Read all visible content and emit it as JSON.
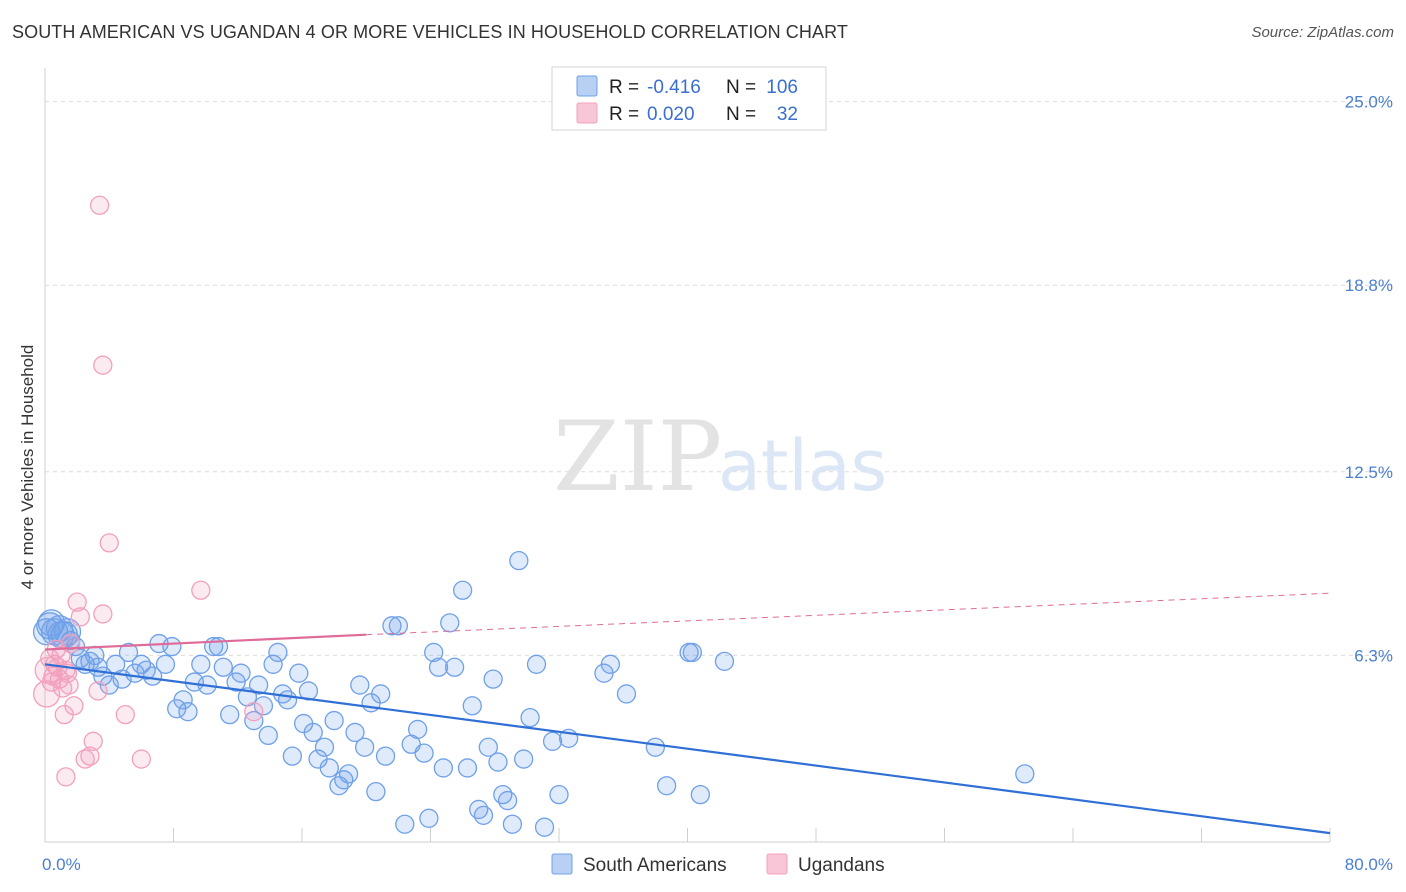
{
  "title": "SOUTH AMERICAN VS UGANDAN 4 OR MORE VEHICLES IN HOUSEHOLD CORRELATION CHART",
  "source": "Source: ZipAtlas.com",
  "watermark": {
    "zip": "ZIP",
    "atlas": "atlas"
  },
  "chart_data": {
    "type": "scatter",
    "ylabel": "4 or more Vehicles in Household",
    "xlim": [
      0,
      80
    ],
    "ylim": [
      0,
      26
    ],
    "x_tick_labels": [
      {
        "value": 0,
        "label": "0.0%"
      },
      {
        "value": 80,
        "label": "80.0%"
      }
    ],
    "y_ticks": [
      {
        "value": 6.3,
        "label": "6.3%"
      },
      {
        "value": 12.5,
        "label": "12.5%"
      },
      {
        "value": 18.8,
        "label": "18.8%"
      },
      {
        "value": 25.0,
        "label": "25.0%"
      }
    ],
    "grid": "horizontal dashed",
    "legend_position": "top-center",
    "series": [
      {
        "name": "South Americans",
        "color": "#6fa0e8",
        "line_color": "#2f6fd6",
        "R": "-0.416",
        "N": "106",
        "trend": {
          "x0": 0,
          "y0": 6.0,
          "x1": 80,
          "y1": 0.3
        },
        "points": [
          [
            0.3,
            7.3
          ],
          [
            0.6,
            7.1
          ],
          [
            0.9,
            7.2
          ],
          [
            1.2,
            7.0
          ],
          [
            1.6,
            6.8
          ],
          [
            1.9,
            6.6
          ],
          [
            2.2,
            6.2
          ],
          [
            2.5,
            6.0
          ],
          [
            2.8,
            6.1
          ],
          [
            3.1,
            6.3
          ],
          [
            3.3,
            5.9
          ],
          [
            3.6,
            5.6
          ],
          [
            4.0,
            5.3
          ],
          [
            4.4,
            6.0
          ],
          [
            4.8,
            5.5
          ],
          [
            5.2,
            6.4
          ],
          [
            5.6,
            5.7
          ],
          [
            6.0,
            6.0
          ],
          [
            6.3,
            5.8
          ],
          [
            6.7,
            5.6
          ],
          [
            7.1,
            6.7
          ],
          [
            7.5,
            6.0
          ],
          [
            7.9,
            6.6
          ],
          [
            8.2,
            4.5
          ],
          [
            8.6,
            4.8
          ],
          [
            8.9,
            4.4
          ],
          [
            9.3,
            5.4
          ],
          [
            9.7,
            6.0
          ],
          [
            10.1,
            5.3
          ],
          [
            10.5,
            6.6
          ],
          [
            10.8,
            6.6
          ],
          [
            11.1,
            5.9
          ],
          [
            11.5,
            4.3
          ],
          [
            11.9,
            5.4
          ],
          [
            12.2,
            5.7
          ],
          [
            12.6,
            4.9
          ],
          [
            13.0,
            4.1
          ],
          [
            13.3,
            5.3
          ],
          [
            13.6,
            4.6
          ],
          [
            13.9,
            3.6
          ],
          [
            14.2,
            6.0
          ],
          [
            14.5,
            6.4
          ],
          [
            14.8,
            5.0
          ],
          [
            15.1,
            4.8
          ],
          [
            15.4,
            2.9
          ],
          [
            15.8,
            5.7
          ],
          [
            16.1,
            4.0
          ],
          [
            16.4,
            5.1
          ],
          [
            16.7,
            3.7
          ],
          [
            17.0,
            2.8
          ],
          [
            17.4,
            3.2
          ],
          [
            17.7,
            2.5
          ],
          [
            18.0,
            4.1
          ],
          [
            18.3,
            1.9
          ],
          [
            18.6,
            2.1
          ],
          [
            18.9,
            2.3
          ],
          [
            19.3,
            3.7
          ],
          [
            19.6,
            5.3
          ],
          [
            19.9,
            3.2
          ],
          [
            20.3,
            4.7
          ],
          [
            20.6,
            1.7
          ],
          [
            20.9,
            5.0
          ],
          [
            21.2,
            2.9
          ],
          [
            21.6,
            7.3
          ],
          [
            22.0,
            7.3
          ],
          [
            22.4,
            0.6
          ],
          [
            22.8,
            3.3
          ],
          [
            23.2,
            3.8
          ],
          [
            23.6,
            3.0
          ],
          [
            23.9,
            0.8
          ],
          [
            24.2,
            6.4
          ],
          [
            24.5,
            5.9
          ],
          [
            24.8,
            2.5
          ],
          [
            25.2,
            7.4
          ],
          [
            25.5,
            5.9
          ],
          [
            26.0,
            8.5
          ],
          [
            26.3,
            2.5
          ],
          [
            26.6,
            4.6
          ],
          [
            27.0,
            1.1
          ],
          [
            27.3,
            0.9
          ],
          [
            27.6,
            3.2
          ],
          [
            27.9,
            5.5
          ],
          [
            28.2,
            2.7
          ],
          [
            28.5,
            1.6
          ],
          [
            28.8,
            1.4
          ],
          [
            29.1,
            0.6
          ],
          [
            29.5,
            9.5
          ],
          [
            29.8,
            2.8
          ],
          [
            30.2,
            4.2
          ],
          [
            30.6,
            6.0
          ],
          [
            31.1,
            0.5
          ],
          [
            31.6,
            3.4
          ],
          [
            32.0,
            1.6
          ],
          [
            32.6,
            3.5
          ],
          [
            34.8,
            5.7
          ],
          [
            35.2,
            6.0
          ],
          [
            36.2,
            5.0
          ],
          [
            38.0,
            3.2
          ],
          [
            38.7,
            1.9
          ],
          [
            40.1,
            6.4
          ],
          [
            40.3,
            6.4
          ],
          [
            40.8,
            1.6
          ],
          [
            42.3,
            6.1
          ],
          [
            61.0,
            2.3
          ],
          [
            0.1,
            7.1
          ],
          [
            0.4,
            7.4
          ],
          [
            1.0,
            7.0
          ],
          [
            1.4,
            7.1
          ]
        ]
      },
      {
        "name": "Ugandans",
        "color": "#f3a0bd",
        "line_color": "#e06b98",
        "R": "0.020",
        "N": "32",
        "trend": {
          "x0": 0,
          "y0": 6.5,
          "x1": 20,
          "y1": 7.0
        },
        "trend_ext": {
          "x0": 20,
          "y0": 7.0,
          "x1": 80,
          "y1": 8.4
        },
        "points": [
          [
            0.1,
            5.0
          ],
          [
            0.2,
            5.8
          ],
          [
            0.3,
            6.2
          ],
          [
            0.4,
            5.4
          ],
          [
            0.5,
            5.6
          ],
          [
            0.6,
            6.0
          ],
          [
            0.7,
            6.5
          ],
          [
            0.8,
            5.9
          ],
          [
            0.9,
            5.5
          ],
          [
            1.0,
            6.3
          ],
          [
            1.1,
            5.2
          ],
          [
            1.2,
            4.3
          ],
          [
            1.3,
            5.8
          ],
          [
            1.4,
            5.7
          ],
          [
            1.5,
            5.3
          ],
          [
            1.6,
            6.7
          ],
          [
            1.8,
            4.6
          ],
          [
            2.0,
            8.1
          ],
          [
            2.2,
            7.6
          ],
          [
            2.5,
            2.8
          ],
          [
            2.8,
            2.9
          ],
          [
            3.0,
            3.4
          ],
          [
            3.3,
            5.1
          ],
          [
            3.6,
            7.7
          ],
          [
            4.0,
            10.1
          ],
          [
            3.4,
            21.5
          ],
          [
            3.6,
            16.1
          ],
          [
            5.0,
            4.3
          ],
          [
            6.0,
            2.8
          ],
          [
            9.7,
            8.5
          ],
          [
            13.0,
            4.4
          ],
          [
            1.3,
            2.2
          ]
        ]
      }
    ]
  }
}
